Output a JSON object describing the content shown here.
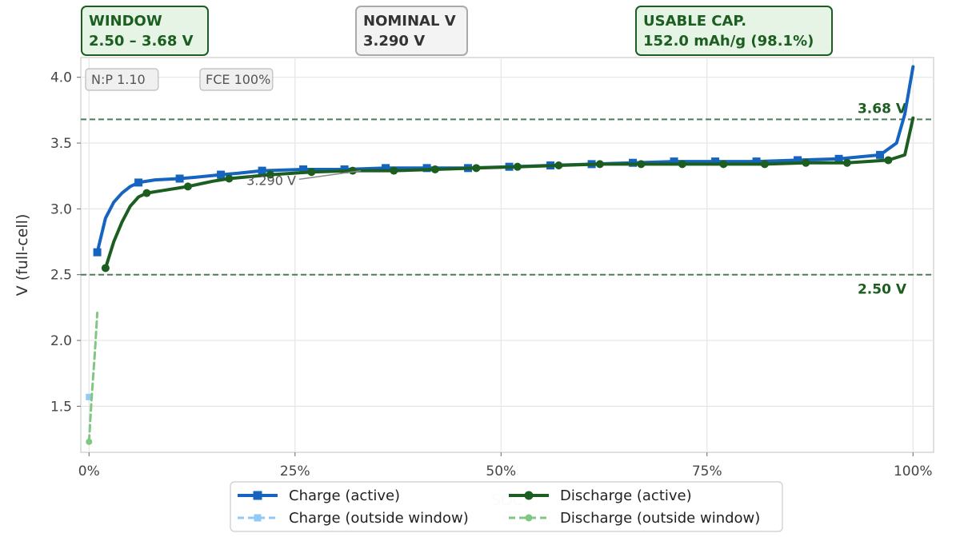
{
  "chart_data": {
    "type": "line",
    "title": "",
    "xlabel": "SOC",
    "ylabel": "V (full-cell)",
    "xlim": [
      -0.01,
      1.025
    ],
    "ylim": [
      1.15,
      4.15
    ],
    "x_ticks": [
      0,
      0.25,
      0.5,
      0.75,
      1.0
    ],
    "x_tick_labels": [
      "0%",
      "25%",
      "50%",
      "75%",
      "100%"
    ],
    "y_ticks": [
      1.5,
      2.0,
      2.5,
      3.0,
      3.5,
      4.0
    ],
    "y_tick_labels": [
      "1.5",
      "2.0",
      "2.5",
      "3.0",
      "3.5",
      "4.0"
    ],
    "grid": true,
    "legend_position": "bottom-center",
    "window": {
      "lower": 2.5,
      "upper": 3.68,
      "lower_label": "2.50 V",
      "upper_label": "3.68 V"
    },
    "series": [
      {
        "name": "Charge (active)",
        "color": "#1565c0",
        "style": "solid",
        "marker": "square",
        "x": [
          0.01,
          0.02,
          0.03,
          0.04,
          0.05,
          0.06,
          0.08,
          0.11,
          0.13,
          0.16,
          0.18,
          0.21,
          0.26,
          0.31,
          0.36,
          0.41,
          0.46,
          0.51,
          0.56,
          0.61,
          0.66,
          0.71,
          0.76,
          0.81,
          0.86,
          0.91,
          0.96,
          0.98,
          0.99,
          1.0
        ],
        "y": [
          2.67,
          2.93,
          3.05,
          3.12,
          3.17,
          3.2,
          3.22,
          3.23,
          3.24,
          3.26,
          3.27,
          3.29,
          3.3,
          3.3,
          3.31,
          3.31,
          3.31,
          3.32,
          3.33,
          3.34,
          3.35,
          3.36,
          3.36,
          3.36,
          3.37,
          3.38,
          3.41,
          3.5,
          3.72,
          4.08
        ],
        "marker_x": [
          0.01,
          0.06,
          0.11,
          0.16,
          0.21,
          0.26,
          0.31,
          0.36,
          0.41,
          0.46,
          0.51,
          0.56,
          0.61,
          0.66,
          0.71,
          0.76,
          0.81,
          0.86,
          0.91,
          0.96
        ]
      },
      {
        "name": "Discharge (active)",
        "color": "#1b5e20",
        "style": "solid",
        "marker": "circle",
        "x": [
          0.02,
          0.03,
          0.04,
          0.05,
          0.06,
          0.07,
          0.09,
          0.12,
          0.15,
          0.17,
          0.22,
          0.27,
          0.32,
          0.37,
          0.42,
          0.47,
          0.52,
          0.57,
          0.62,
          0.67,
          0.72,
          0.77,
          0.82,
          0.87,
          0.92,
          0.97,
          0.99,
          1.0
        ],
        "y": [
          2.55,
          2.75,
          2.9,
          3.02,
          3.09,
          3.12,
          3.14,
          3.17,
          3.21,
          3.23,
          3.26,
          3.28,
          3.29,
          3.29,
          3.3,
          3.31,
          3.32,
          3.33,
          3.34,
          3.34,
          3.34,
          3.34,
          3.34,
          3.35,
          3.35,
          3.37,
          3.41,
          3.69
        ],
        "marker_x": [
          0.02,
          0.07,
          0.12,
          0.17,
          0.22,
          0.27,
          0.32,
          0.37,
          0.42,
          0.47,
          0.52,
          0.57,
          0.62,
          0.67,
          0.72,
          0.77,
          0.82,
          0.87,
          0.92,
          0.97
        ]
      },
      {
        "name": "Charge (outside window)",
        "color": "#90caf9",
        "style": "dashed",
        "marker": "square",
        "x": [
          0.0,
          0.002
        ],
        "y": [
          1.57,
          1.58
        ],
        "marker_x": [
          0.0
        ]
      },
      {
        "name": "Discharge (outside window)",
        "color": "#81c784",
        "style": "dashed",
        "marker": "circle",
        "x": [
          0.0,
          0.003,
          0.007,
          0.01
        ],
        "y": [
          1.23,
          1.55,
          1.9,
          2.21
        ],
        "marker_x": [
          0.0
        ]
      }
    ],
    "annotations": [
      {
        "text": "3.290 V",
        "x": 0.33,
        "y": 3.29,
        "arrow_from": [
          0.255,
          3.225
        ]
      }
    ]
  },
  "info_boxes": [
    {
      "title": "WINDOW",
      "value": "2.50 – 3.68 V",
      "theme": "green"
    },
    {
      "title": "NOMINAL V",
      "value": "3.290 V",
      "theme": "gray"
    },
    {
      "title": "USABLE CAP.",
      "value": "152.0 mAh/g (98.1%)",
      "theme": "green"
    }
  ],
  "badges": [
    "N:P 1.10",
    "FCE 100%"
  ],
  "legend": [
    {
      "label": "Charge (active)",
      "series": 0
    },
    {
      "label": "Discharge (active)",
      "series": 1
    },
    {
      "label": "Charge (outside window)",
      "series": 2
    },
    {
      "label": "Discharge (outside window)",
      "series": 3
    }
  ]
}
